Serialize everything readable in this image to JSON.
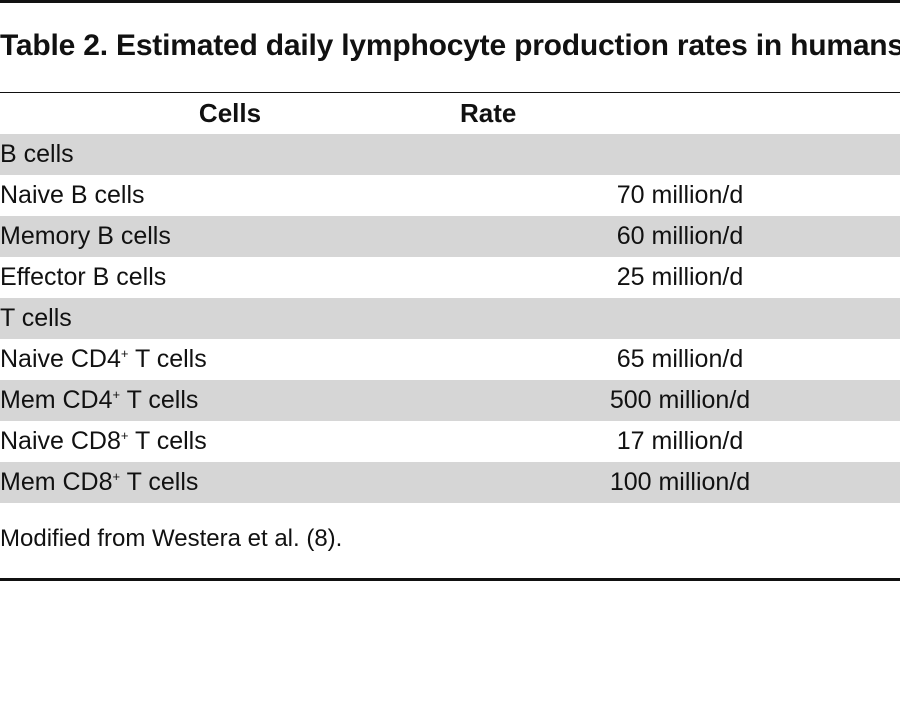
{
  "title": "Table 2. Estimated daily lymphocyte production rates in humans",
  "columns": {
    "cells": "Cells",
    "rate": "Rate"
  },
  "rows": [
    {
      "type": "group",
      "label": "B cells",
      "rate": ""
    },
    {
      "type": "item",
      "label": "Naive B cells",
      "rate": "70 million/d"
    },
    {
      "type": "item",
      "label": "Memory B cells",
      "rate": "60 million/d"
    },
    {
      "type": "item",
      "label": "Effector B cells",
      "rate": "25 million/d"
    },
    {
      "type": "group",
      "label": "T cells",
      "rate": ""
    },
    {
      "type": "item",
      "label_pre": "Naive CD4",
      "label_sup": "+",
      "label_post": " T cells",
      "rate": "65 million/d"
    },
    {
      "type": "item",
      "label_pre": "Mem CD4",
      "label_sup": "+",
      "label_post": " T cells",
      "rate": "500 million/d"
    },
    {
      "type": "item",
      "label_pre": "Naive CD8",
      "label_sup": "+",
      "label_post": " T cells",
      "rate": "17 million/d"
    },
    {
      "type": "item",
      "label_pre": "Mem CD8",
      "label_sup": "+",
      "label_post": " T cells",
      "rate": "100 million/d"
    }
  ],
  "footnote": "Modified from Westera et al. (8).",
  "colors": {
    "rule": "#111111",
    "shade": "#d6d6d6",
    "text": "#111111"
  }
}
